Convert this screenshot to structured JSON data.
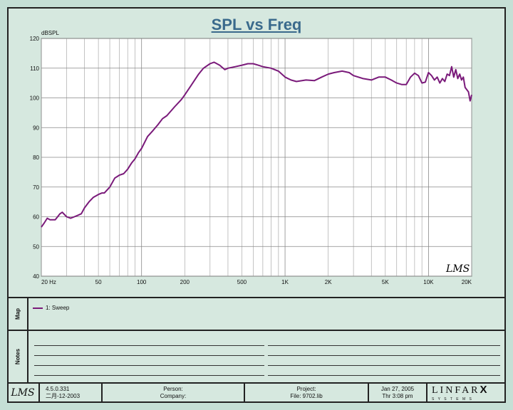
{
  "chart_data": {
    "type": "line",
    "title": "SPL vs Freq",
    "ylabel": "dBSPL",
    "xlabel": "",
    "x_scale": "log",
    "xlim": [
      20,
      20000
    ],
    "ylim": [
      40,
      120
    ],
    "x_tick_values": [
      20,
      50,
      100,
      200,
      500,
      1000,
      2000,
      5000,
      10000,
      20000
    ],
    "x_tick_labels": [
      "20 Hz",
      "50",
      "100",
      "200",
      "500",
      "1K",
      "2K",
      "5K",
      "10K",
      "20K"
    ],
    "y_ticks": [
      40,
      50,
      60,
      70,
      80,
      90,
      100,
      110,
      120
    ],
    "grid": true,
    "series": [
      {
        "name": "1: Sweep",
        "color": "#7a1a7a",
        "x": [
          20,
          21,
          22,
          23,
          25,
          26,
          27,
          28,
          30,
          32,
          34,
          36,
          38,
          40,
          43,
          46,
          50,
          53,
          55,
          60,
          65,
          70,
          75,
          80,
          85,
          90,
          95,
          100,
          110,
          120,
          130,
          140,
          150,
          170,
          190,
          200,
          220,
          250,
          270,
          300,
          320,
          350,
          380,
          400,
          450,
          500,
          550,
          600,
          650,
          700,
          800,
          900,
          1000,
          1100,
          1200,
          1400,
          1600,
          1800,
          2000,
          2200,
          2500,
          2800,
          3000,
          3500,
          4000,
          4500,
          5000,
          5500,
          6000,
          6500,
          7000,
          7500,
          8000,
          8500,
          9000,
          9500,
          10000,
          10500,
          11000,
          11500,
          12000,
          12500,
          13000,
          13500,
          14000,
          14500,
          15000,
          15500,
          16000,
          16500,
          17000,
          17500,
          18000,
          19000,
          19500,
          20000
        ],
        "y": [
          56.5,
          58,
          59.5,
          59,
          59,
          60,
          61,
          61.5,
          60,
          59.5,
          60,
          60.5,
          61,
          63,
          65,
          66.5,
          67.5,
          68,
          68,
          70,
          73,
          74,
          74.5,
          76,
          78,
          79.5,
          81.5,
          83,
          87,
          89,
          91,
          93,
          94,
          97,
          99.5,
          101,
          104,
          108,
          110,
          111.5,
          112,
          111,
          109.5,
          110,
          110.5,
          111,
          111.5,
          111.5,
          111,
          110.5,
          110,
          109,
          107,
          106,
          105.5,
          106,
          105.8,
          107,
          108,
          108.5,
          109,
          108.5,
          107.5,
          106.5,
          106,
          107,
          107,
          106,
          105,
          104.5,
          104.5,
          107,
          108.3,
          107.5,
          105,
          105.3,
          108.5,
          107.5,
          106,
          107,
          105,
          106.5,
          105.5,
          108,
          107.5,
          110.5,
          107,
          109.5,
          106.5,
          108,
          106,
          107,
          103.5,
          102,
          99,
          101
        ]
      }
    ]
  },
  "watermark": "LMS",
  "legend": {
    "side_label": "Map",
    "entries": [
      {
        "label": "1: Sweep",
        "color": "#7a1a7a"
      }
    ]
  },
  "notes": {
    "side_label": "Notes"
  },
  "footer": {
    "logo": "LMS",
    "version": "4.5.0.331",
    "date_code": "二月-12-2003",
    "person_label": "Person:",
    "company_label": "Company:",
    "project_label": "Project:",
    "file_label": "File: 9702.lib",
    "date": "Jan 27, 2005",
    "time": "Thr 3:08 pm",
    "brand": "LINFAR",
    "brand_x": "X",
    "brand_sub": "S Y S T E M S"
  }
}
